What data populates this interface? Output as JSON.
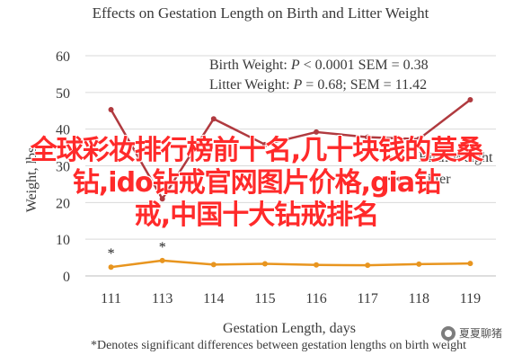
{
  "chart_data": {
    "type": "line",
    "title": "Effects on Gestation Length on Birth and Litter Weight",
    "xlabel": "Gestation Length, days",
    "ylabel": "Weight, lbs",
    "categories": [
      "111",
      "113",
      "114",
      "115",
      "116",
      "117",
      "118",
      "119"
    ],
    "ylim": [
      0,
      60
    ],
    "yticks": [
      0,
      10,
      20,
      30,
      40,
      50,
      60
    ],
    "grid": "horizontal",
    "legend_position": "center-right",
    "series": [
      {
        "name": "Birth Weight",
        "color": "#e8951f",
        "values": [
          2.4,
          4.2,
          3.1,
          3.3,
          3.0,
          2.9,
          3.2,
          3.4
        ],
        "markers": [
          "*",
          "*",
          "",
          "",
          "",
          "",
          "",
          ""
        ]
      },
      {
        "name": "Litter",
        "color": "#b03a3f",
        "values": [
          45.3,
          21.0,
          42.8,
          35.8,
          39.2,
          37.8,
          37.3,
          48.0
        ]
      }
    ],
    "annotations": {
      "birth_stats_label": "Birth Weight: ",
      "birth_stats_p": "P",
      "birth_stats_rest": " < 0.0001 SEM = 0.38",
      "litter_stats_label": "Litter Weight: ",
      "litter_stats_p": "P",
      "litter_stats_rest": " = 0.68; SEM = 11.42"
    },
    "footnote": "*Denotes significant differences between gestation lengths on birth weight"
  },
  "overlay_text": {
    "line1": "全球彩妆排行榜前十名,几十块钱的莫桑",
    "line2": "钻,ido钻戒官网图片价格,gia钻",
    "line3": "戒,中国十大钻戒排名"
  },
  "watermark": {
    "text": "夏夏聊猪",
    "icon": "wechat-like-icon"
  }
}
